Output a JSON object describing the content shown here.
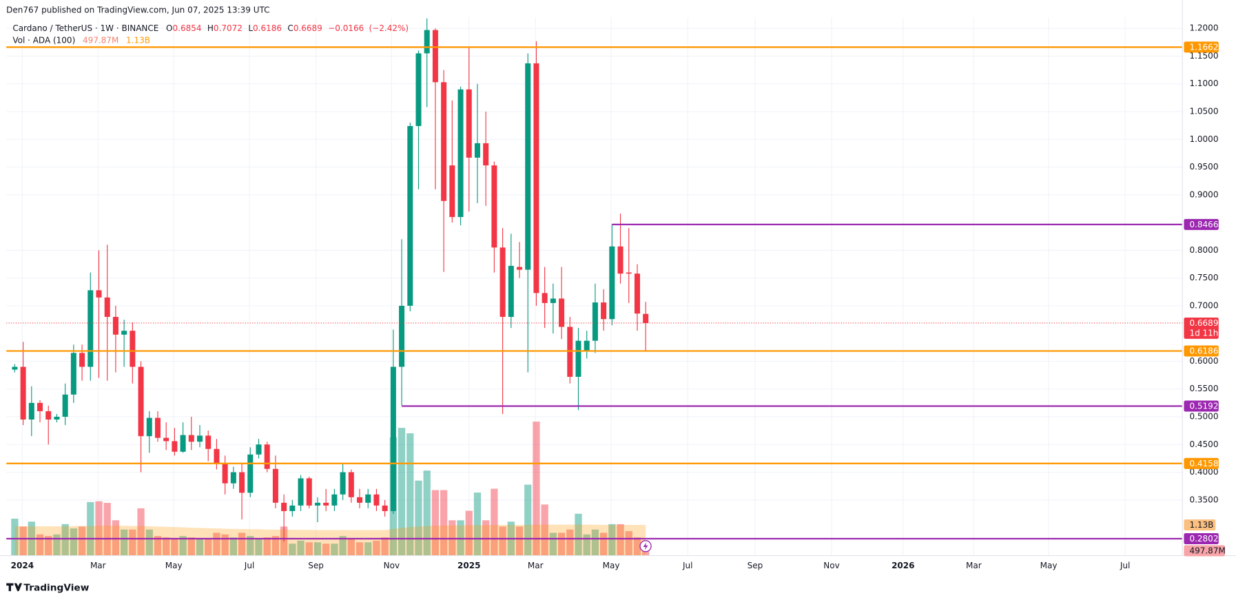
{
  "header": {
    "publisher": "Den767 published on TradingView.com, Jun 07, 2025 13:39 UTC"
  },
  "chart_data": {
    "type": "candlestick",
    "symbol": "Cardano / TetherUS · 1W · BINANCE",
    "ohlc_prefixes": [
      "O",
      "H",
      "L",
      "C"
    ],
    "change": {
      "value": -0.0166,
      "label": "−0.0166"
    },
    "change_percent": {
      "value": -2.42,
      "label": "(−2.42%)"
    },
    "up_color": "#089981",
    "down_color": "#f23645",
    "candles": {
      "open": [
        0.585,
        0.59,
        0.495,
        0.525,
        0.51,
        0.495,
        0.5,
        0.54,
        0.615,
        0.59,
        0.728,
        0.715,
        0.68,
        0.648,
        0.655,
        0.59,
        0.465,
        0.498,
        0.462,
        0.456,
        0.437,
        0.467,
        0.455,
        0.466,
        0.442,
        0.415,
        0.38,
        0.4,
        0.363,
        0.432,
        0.45,
        0.406,
        0.345,
        0.33,
        0.34,
        0.389,
        0.34,
        0.345,
        0.34,
        0.36,
        0.4,
        0.355,
        0.345,
        0.36,
        0.34,
        0.33,
        0.59,
        0.7,
        1.024,
        1.155,
        1.197,
        1.103,
        0.953,
        0.86,
        1.09,
        0.967,
        0.993,
        0.953,
        0.805,
        0.68,
        0.77,
        0.765,
        1.137,
        0.723,
        0.705,
        0.713,
        0.662,
        0.572,
        0.618,
        0.637,
        0.706,
        0.676,
        0.807,
        0.76,
        0.758,
        0.6854
      ],
      "high": [
        0.595,
        0.635,
        0.555,
        0.53,
        0.52,
        0.505,
        0.56,
        0.63,
        0.63,
        0.76,
        0.8,
        0.81,
        0.7,
        0.675,
        0.67,
        0.6,
        0.51,
        0.51,
        0.49,
        0.48,
        0.49,
        0.5,
        0.485,
        0.475,
        0.46,
        0.43,
        0.41,
        0.415,
        0.445,
        0.46,
        0.455,
        0.43,
        0.36,
        0.35,
        0.395,
        0.392,
        0.355,
        0.37,
        0.37,
        0.416,
        0.405,
        0.37,
        0.37,
        0.37,
        0.35,
        0.657,
        0.82,
        1.03,
        1.16,
        1.218,
        1.2,
        1.125,
        1.07,
        1.095,
        1.165,
        1.1,
        1.05,
        0.96,
        0.84,
        0.83,
        0.815,
        1.155,
        1.177,
        0.77,
        0.74,
        0.77,
        0.68,
        0.66,
        0.655,
        0.74,
        0.73,
        0.847,
        0.866,
        0.84,
        0.775,
        0.7072
      ],
      "low": [
        0.58,
        0.485,
        0.465,
        0.49,
        0.45,
        0.49,
        0.485,
        0.525,
        0.565,
        0.565,
        0.57,
        0.565,
        0.58,
        0.59,
        0.56,
        0.4,
        0.435,
        0.455,
        0.44,
        0.43,
        0.435,
        0.44,
        0.445,
        0.42,
        0.405,
        0.36,
        0.37,
        0.315,
        0.355,
        0.425,
        0.4,
        0.335,
        0.275,
        0.32,
        0.33,
        0.335,
        0.31,
        0.33,
        0.33,
        0.35,
        0.345,
        0.335,
        0.335,
        0.33,
        0.32,
        0.325,
        0.52,
        0.69,
        0.91,
        1.058,
        0.91,
        0.761,
        0.85,
        0.845,
        0.87,
        0.885,
        0.88,
        0.76,
        0.505,
        0.66,
        0.75,
        0.58,
        0.7,
        0.66,
        0.65,
        0.64,
        0.56,
        0.512,
        0.605,
        0.615,
        0.655,
        0.665,
        0.74,
        0.705,
        0.655,
        0.6186
      ],
      "close": [
        0.59,
        0.495,
        0.525,
        0.51,
        0.495,
        0.5,
        0.54,
        0.615,
        0.59,
        0.728,
        0.715,
        0.68,
        0.648,
        0.655,
        0.59,
        0.465,
        0.498,
        0.462,
        0.456,
        0.437,
        0.467,
        0.455,
        0.466,
        0.442,
        0.415,
        0.38,
        0.4,
        0.363,
        0.432,
        0.45,
        0.406,
        0.345,
        0.33,
        0.34,
        0.389,
        0.34,
        0.345,
        0.34,
        0.36,
        0.4,
        0.355,
        0.345,
        0.36,
        0.34,
        0.33,
        0.59,
        0.7,
        1.024,
        1.155,
        1.197,
        1.103,
        0.889,
        0.86,
        1.09,
        0.967,
        0.993,
        0.953,
        0.805,
        0.68,
        0.772,
        0.765,
        1.137,
        0.723,
        0.705,
        0.713,
        0.662,
        0.572,
        0.637,
        0.637,
        0.706,
        0.676,
        0.807,
        0.758,
        0.758,
        0.686,
        0.6689
      ]
    },
    "volume": {
      "title": "Vol · ADA (100)",
      "values": [
        1360000000.0,
        1070000000.0,
        1250000000.0,
        780000000.0,
        720000000.0,
        780000000.0,
        1160000000.0,
        1000000000.0,
        1070000000.0,
        1970000000.0,
        2000000000.0,
        1940000000.0,
        1300000000.0,
        960000000.0,
        960000000.0,
        1740000000.0,
        960000000.0,
        720000000.0,
        670000000.0,
        610000000.0,
        720000000.0,
        670000000.0,
        610000000.0,
        610000000.0,
        840000000.0,
        780000000.0,
        670000000.0,
        840000000.0,
        720000000.0,
        610000000.0,
        670000000.0,
        720000000.0,
        1070000000.0,
        440000000.0,
        550000000.0,
        490000000.0,
        490000000.0,
        440000000.0,
        440000000.0,
        720000000.0,
        610000000.0,
        490000000.0,
        490000000.0,
        550000000.0,
        670000000.0,
        4350000000.0,
        4700000000.0,
        4500000000.0,
        2760000000.0,
        3130000000.0,
        2410000000.0,
        2410000000.0,
        1300000000.0,
        1300000000.0,
        1650000000.0,
        2320000000.0,
        1300000000.0,
        2460000000.0,
        1070000000.0,
        1250000000.0,
        1070000000.0,
        2610000000.0,
        4930000000.0,
        1880000000.0,
        840000000.0,
        840000000.0,
        960000000.0,
        1540000000.0,
        780000000.0,
        960000000.0,
        840000000.0,
        1160000000.0,
        1160000000.0,
        900000000.0,
        670000000.0,
        497870000.0
      ],
      "ma": [
        1080000000.0,
        1080000000.0,
        1080000000.0,
        1080000000.0,
        1080000000.0,
        1080000000.0,
        1080000000.0,
        1090000000.0,
        1090000000.0,
        1090000000.0,
        1100000000.0,
        1100000000.0,
        1100000000.0,
        1100000000.0,
        1090000000.0,
        1090000000.0,
        1080000000.0,
        1070000000.0,
        1060000000.0,
        1050000000.0,
        1040000000.0,
        1030000000.0,
        1020000000.0,
        1010000000.0,
        1000000000.0,
        990000000.0,
        980000000.0,
        980000000.0,
        970000000.0,
        970000000.0,
        960000000.0,
        960000000.0,
        960000000.0,
        950000000.0,
        950000000.0,
        950000000.0,
        940000000.0,
        940000000.0,
        940000000.0,
        940000000.0,
        940000000.0,
        940000000.0,
        940000000.0,
        940000000.0,
        940000000.0,
        980000000.0,
        1020000000.0,
        1050000000.0,
        1070000000.0,
        1090000000.0,
        1100000000.0,
        1110000000.0,
        1110000000.0,
        1110000000.0,
        1120000000.0,
        1120000000.0,
        1120000000.0,
        1130000000.0,
        1130000000.0,
        1130000000.0,
        1130000000.0,
        1130000000.0,
        1140000000.0,
        1140000000.0,
        1140000000.0,
        1140000000.0,
        1140000000.0,
        1140000000.0,
        1140000000.0,
        1140000000.0,
        1130000000.0,
        1130000000.0,
        1130000000.0,
        1130000000.0,
        1130000000.0,
        1130000000.0
      ],
      "current": {
        "value": 497870000.0,
        "label": "497.87M"
      },
      "ma_current": {
        "value": 1130000000.0,
        "label": "1.13B"
      },
      "ylim": [
        0,
        19800000000.0
      ]
    },
    "levels": [
      {
        "value": 1.1662,
        "color": "#ff9800"
      },
      {
        "value": 0.8466,
        "color": "#9c27b0",
        "x_start": 71
      },
      {
        "value": 0.6186,
        "color": "#ff9800"
      },
      {
        "value": 0.5192,
        "color": "#9c27b0",
        "x_start": 46
      },
      {
        "value": 0.4158,
        "color": "#ff9800"
      },
      {
        "value": 0.2802,
        "color": "#9c27b0"
      }
    ],
    "countdown": "1d 11h",
    "xlim": [
      -1,
      138.8
    ],
    "xticks": [
      {
        "value": 0.9,
        "label": "2024"
      },
      {
        "value": 9.9,
        "label": "Mar"
      },
      {
        "value": 18.9,
        "label": "May"
      },
      {
        "value": 27.9,
        "label": "Jul"
      },
      {
        "value": 35.8,
        "label": "Sep"
      },
      {
        "value": 44.8,
        "label": "Nov"
      },
      {
        "value": 54.0,
        "label": "2025"
      },
      {
        "value": 61.9,
        "label": "Mar"
      },
      {
        "value": 70.9,
        "label": "May"
      },
      {
        "value": 80.0,
        "label": "Jul"
      },
      {
        "value": 88.0,
        "label": "Sep"
      },
      {
        "value": 97.1,
        "label": "Nov"
      },
      {
        "value": 105.6,
        "label": "2026"
      },
      {
        "value": 114.0,
        "label": "Mar"
      },
      {
        "value": 122.9,
        "label": "May"
      },
      {
        "value": 132.0,
        "label": "Jul"
      }
    ],
    "ylim": [
      0.2497,
      1.2199
    ],
    "yticks": [
      {
        "value": 1.2,
        "label": "1.2000"
      },
      {
        "value": 1.15,
        "label": "1.1500"
      },
      {
        "value": 1.1,
        "label": "1.1000"
      },
      {
        "value": 1.05,
        "label": "1.0500"
      },
      {
        "value": 1.0,
        "label": "1.0000"
      },
      {
        "value": 0.95,
        "label": "0.9500"
      },
      {
        "value": 0.9,
        "label": "0.9000"
      },
      {
        "value": 0.8,
        "label": "0.8000"
      },
      {
        "value": 0.75,
        "label": "0.7500"
      },
      {
        "value": 0.7,
        "label": "0.7000"
      },
      {
        "value": 0.6,
        "label": "0.6000"
      },
      {
        "value": 0.55,
        "label": "0.5500"
      },
      {
        "value": 0.5,
        "label": "0.5000"
      },
      {
        "value": 0.45,
        "label": "0.4500"
      },
      {
        "value": 0.4,
        "label": "0.4000"
      },
      {
        "value": 0.35,
        "label": "0.3500"
      }
    ],
    "grid": true
  },
  "footer": {
    "logo": "TradingView"
  }
}
